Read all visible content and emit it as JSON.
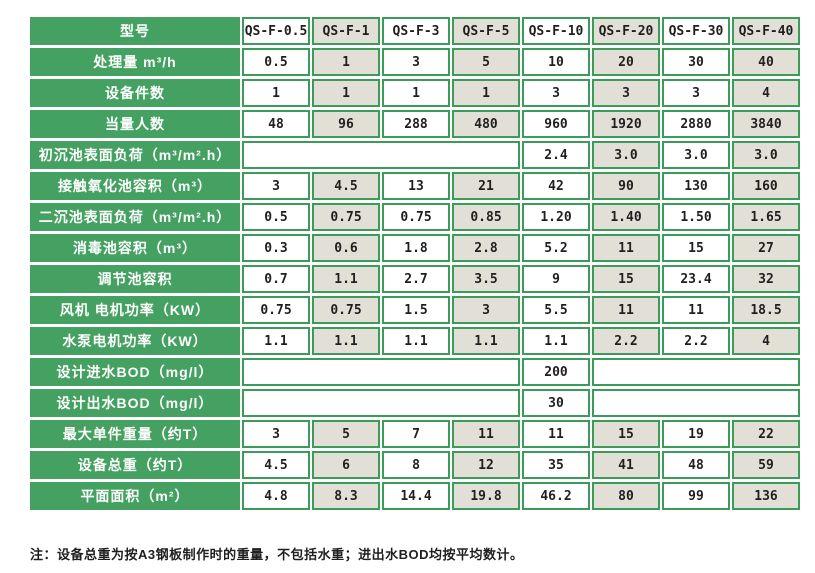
{
  "colors": {
    "green": "#45a161",
    "border_green": "#3b9b59",
    "beige": "#e2e0d6",
    "cell_white": "#ffffff",
    "text_dark": "#1f1f1f",
    "label_text": "#ffffff",
    "page_bg": "#ffffff"
  },
  "table": {
    "header": {
      "label": "型号",
      "models": [
        "QS-F-0.5",
        "QS-F-1",
        "QS-F-3",
        "QS-F-5",
        "QS-F-10",
        "QS-F-20",
        "QS-F-30",
        "QS-F-40"
      ]
    },
    "rows": [
      {
        "label": "处理量 m³/h",
        "values": [
          "0.5",
          "1",
          "3",
          "5",
          "10",
          "20",
          "30",
          "40"
        ]
      },
      {
        "label": "设备件数",
        "values": [
          "1",
          "1",
          "1",
          "1",
          "3",
          "3",
          "3",
          "4"
        ]
      },
      {
        "label": "当量人数",
        "values": [
          "48",
          "96",
          "288",
          "480",
          "960",
          "1920",
          "2880",
          "3840"
        ]
      },
      {
        "label": "初沉池表面负荷（m³/m².h）",
        "cells": [
          {
            "text": "",
            "span": 4
          },
          {
            "text": "2.4",
            "span": 1
          },
          {
            "text": "3.0",
            "span": 1
          },
          {
            "text": "3.0",
            "span": 1
          },
          {
            "text": "3.0",
            "span": 1
          }
        ]
      },
      {
        "label": "接触氧化池容积（m³）",
        "values": [
          "3",
          "4.5",
          "13",
          "21",
          "42",
          "90",
          "130",
          "160"
        ]
      },
      {
        "label": "二沉池表面负荷（m³/m².h）",
        "values": [
          "0.5",
          "0.75",
          "0.75",
          "0.85",
          "1.20",
          "1.40",
          "1.50",
          "1.65"
        ]
      },
      {
        "label": "消毒池容积（m³）",
        "values": [
          "0.3",
          "0.6",
          "1.8",
          "2.8",
          "5.2",
          "11",
          "15",
          "27"
        ]
      },
      {
        "label": "调节池容积",
        "values": [
          "0.7",
          "1.1",
          "2.7",
          "3.5",
          "9",
          "15",
          "23.4",
          "32"
        ]
      },
      {
        "label": "风机 电机功率（KW）",
        "values": [
          "0.75",
          "0.75",
          "1.5",
          "3",
          "5.5",
          "11",
          "11",
          "18.5"
        ]
      },
      {
        "label": "水泵电机功率（KW）",
        "values": [
          "1.1",
          "1.1",
          "1.1",
          "1.1",
          "1.1",
          "2.2",
          "2.2",
          "4"
        ]
      },
      {
        "label": "设计进水BOD（mg/l）",
        "cells": [
          {
            "text": "",
            "span": 4
          },
          {
            "text": "200",
            "span": 1
          },
          {
            "text": "",
            "span": 3
          }
        ]
      },
      {
        "label": "设计出水BOD（mg/l）",
        "cells": [
          {
            "text": "",
            "span": 4
          },
          {
            "text": "30",
            "span": 1
          },
          {
            "text": "",
            "span": 3
          }
        ]
      },
      {
        "label": "最大单件重量（约T）",
        "values": [
          "3",
          "5",
          "7",
          "11",
          "11",
          "15",
          "19",
          "22"
        ]
      },
      {
        "label": "设备总重（约T）",
        "values": [
          "4.5",
          "6",
          "8",
          "12",
          "35",
          "41",
          "48",
          "59"
        ]
      },
      {
        "label": "平面面积（m²）",
        "values": [
          "4.8",
          "8.3",
          "14.4",
          "19.8",
          "46.2",
          "80",
          "99",
          "136"
        ]
      }
    ]
  },
  "note": {
    "text": "注：设备总重为按A3钢板制作时的重量，不包括水重；进出水BOD均按平均数计。"
  }
}
